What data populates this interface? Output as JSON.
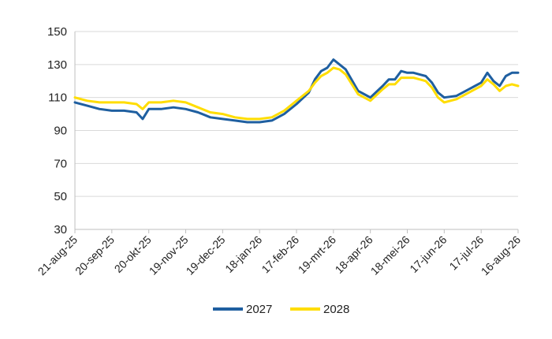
{
  "chart_data": {
    "type": "line",
    "title": "",
    "xlabel": "",
    "ylabel": "",
    "ylim": [
      30,
      150
    ],
    "yticks": [
      30,
      50,
      70,
      90,
      110,
      130,
      150
    ],
    "x_tick_labels": [
      "21-aug-25",
      "20-sep-25",
      "20-okt-25",
      "19-nov-25",
      "19-dec-25",
      "18-jan-26",
      "17-feb-26",
      "19-mrt-26",
      "18-apr-26",
      "18-mei-26",
      "17-jun-26",
      "17-jul-26",
      "16-aug-26"
    ],
    "grid": "horizontal",
    "legend_position": "bottom",
    "series": [
      {
        "name": "2027",
        "color": "#1f5fa0",
        "x": [
          "21-aug-25",
          "31-aug-25",
          "10-sep-25",
          "20-sep-25",
          "30-sep-25",
          "10-okt-25",
          "15-okt-25",
          "20-okt-25",
          "30-okt-25",
          "09-nov-25",
          "19-nov-25",
          "29-nov-25",
          "09-dec-25",
          "19-dec-25",
          "29-dec-25",
          "08-jan-26",
          "13-jan-26",
          "18-jan-26",
          "28-jan-26",
          "07-feb-26",
          "17-feb-26",
          "27-feb-26",
          "04-mrt-26",
          "09-mrt-26",
          "14-mrt-26",
          "19-mrt-26",
          "24-mrt-26",
          "29-mrt-26",
          "08-apr-26",
          "13-apr-26",
          "18-apr-26",
          "28-apr-26",
          "03-mei-26",
          "08-mei-26",
          "13-mei-26",
          "18-mei-26",
          "23-mei-26",
          "28-mei-26",
          "02-jun-26",
          "07-jun-26",
          "12-jun-26",
          "17-jun-26",
          "27-jun-26",
          "07-jul-26",
          "12-jul-26",
          "17-jul-26",
          "22-jul-26",
          "27-jul-26",
          "01-aug-26",
          "06-aug-26",
          "11-aug-26",
          "16-aug-26"
        ],
        "values": [
          107,
          105,
          103,
          102,
          102,
          101,
          97,
          103,
          103,
          104,
          103,
          101,
          98,
          97,
          96,
          95,
          95,
          95,
          96,
          100,
          106,
          113,
          121,
          126,
          128,
          133,
          130,
          127,
          114,
          112,
          110,
          117,
          121,
          121,
          126,
          125,
          125,
          124,
          123,
          119,
          113,
          110,
          111,
          115,
          117,
          119,
          125,
          120,
          117,
          123,
          125,
          125
        ]
      },
      {
        "name": "2028",
        "color": "#ffdd00",
        "x": [
          "21-aug-25",
          "31-aug-25",
          "10-sep-25",
          "20-sep-25",
          "30-sep-25",
          "10-okt-25",
          "15-okt-25",
          "20-okt-25",
          "30-okt-25",
          "09-nov-25",
          "19-nov-25",
          "29-nov-25",
          "09-dec-25",
          "19-dec-25",
          "29-dec-25",
          "08-jan-26",
          "13-jan-26",
          "18-jan-26",
          "28-jan-26",
          "07-feb-26",
          "17-feb-26",
          "27-feb-26",
          "04-mrt-26",
          "09-mrt-26",
          "14-mrt-26",
          "19-mrt-26",
          "24-mrt-26",
          "29-mrt-26",
          "08-apr-26",
          "13-apr-26",
          "18-apr-26",
          "28-apr-26",
          "03-mei-26",
          "08-mei-26",
          "13-mei-26",
          "18-mei-26",
          "23-mei-26",
          "28-mei-26",
          "02-jun-26",
          "07-jun-26",
          "12-jun-26",
          "17-jun-26",
          "27-jun-26",
          "07-jul-26",
          "12-jul-26",
          "17-jul-26",
          "22-jul-26",
          "27-jul-26",
          "01-aug-26",
          "06-aug-26",
          "11-aug-26",
          "16-aug-26"
        ],
        "values": [
          110,
          108,
          107,
          107,
          107,
          106,
          103,
          107,
          107,
          108,
          107,
          104,
          101,
          100,
          98,
          97,
          97,
          97,
          98,
          102,
          108,
          114,
          119,
          123,
          125,
          128,
          127,
          124,
          112,
          110,
          108,
          115,
          118,
          118,
          122,
          122,
          122,
          121,
          120,
          116,
          110,
          107,
          109,
          113,
          115,
          117,
          121,
          118,
          114,
          117,
          118,
          117
        ]
      }
    ]
  }
}
